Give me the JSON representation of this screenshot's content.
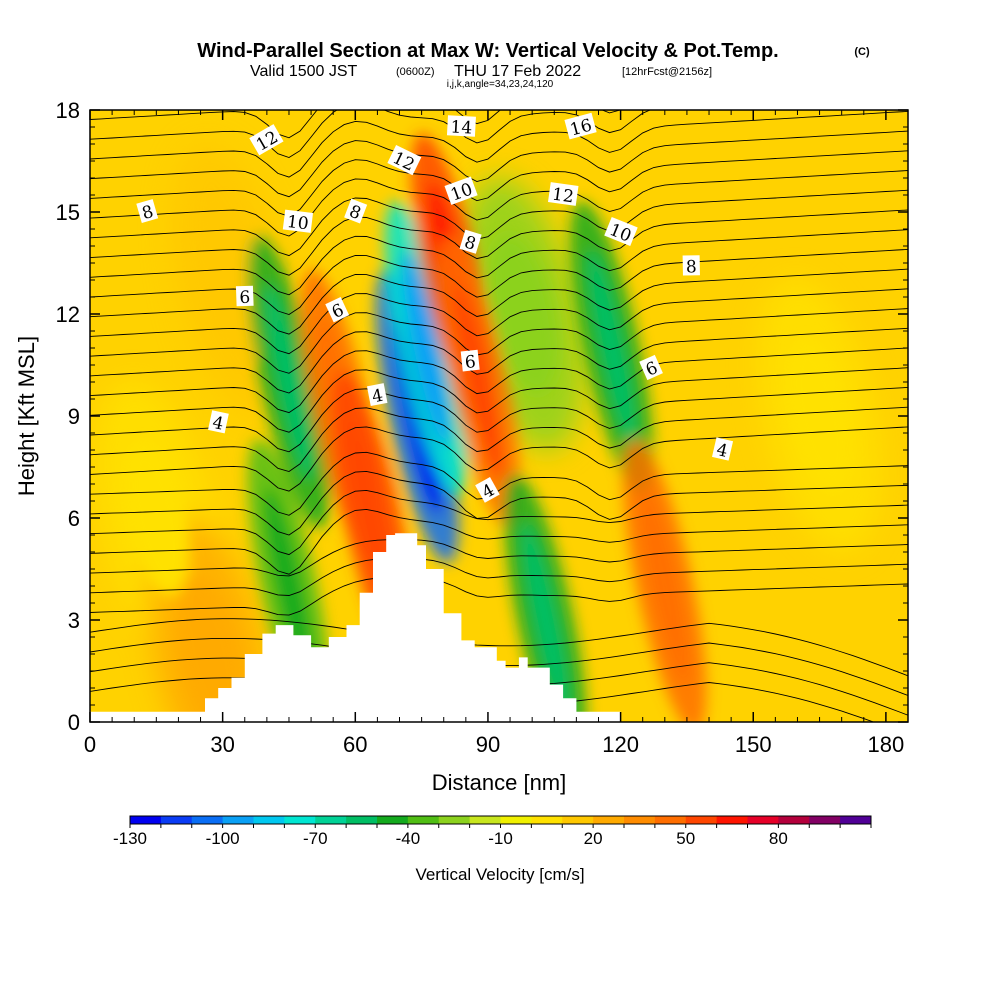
{
  "chart_data": {
    "type": "heatmap",
    "title": "Wind-Parallel Section at Max W: Vertical Velocity & Pot.Temp.",
    "title_mark": "(C)",
    "subtitle_valid": "Valid 1500 JST",
    "subtitle_utc": "(0600Z)",
    "subtitle_date": "THU 17 Feb 2022",
    "subtitle_fcst": "[12hrFcst@2156z]",
    "subtitle_indices": "i,j,k,angle=34,23,24,120",
    "xlabel": "Distance [nm]",
    "ylabel": "Height [Kft MSL]",
    "xlim": [
      0,
      185
    ],
    "ylim": [
      0,
      18
    ],
    "x_ticks": [
      0,
      30,
      60,
      90,
      120,
      150,
      180
    ],
    "y_ticks": [
      0,
      3,
      6,
      9,
      12,
      15,
      18
    ],
    "colorbar": {
      "label": "Vertical Velocity [cm/s]",
      "tick_labels": [
        "-130",
        "-100",
        "-70",
        "-40",
        "-10",
        "20",
        "50",
        "80"
      ],
      "tick_values": [
        -130,
        -100,
        -70,
        -40,
        -10,
        20,
        50,
        80
      ],
      "min": -130,
      "max": 100,
      "step": 10,
      "colors": [
        "#0000f0",
        "#0a3cf5",
        "#0a6ef5",
        "#0aa0f5",
        "#00c8f0",
        "#00e6d2",
        "#00d296",
        "#00be64",
        "#14aa1e",
        "#50be14",
        "#8cd21e",
        "#c8e61e",
        "#f0f000",
        "#ffe100",
        "#ffc800",
        "#ffaa00",
        "#ff8c00",
        "#ff6e00",
        "#ff4600",
        "#ff1400",
        "#e60028",
        "#b4003c",
        "#820064",
        "#500096"
      ]
    },
    "series": [
      {
        "name": "Vertical Velocity",
        "kind": "filled-contour",
        "features": [
          {
            "x": 15,
            "z": 6,
            "w": 5
          },
          {
            "x": 27,
            "z": 2,
            "w": 20
          },
          {
            "x": 32,
            "z": 13,
            "w": 10
          },
          {
            "x": 45,
            "z": 10,
            "w": -45
          },
          {
            "x": 45,
            "z": 4,
            "w": -40
          },
          {
            "x": 57,
            "z": 9,
            "w": 40
          },
          {
            "x": 64,
            "z": 6,
            "w": 50
          },
          {
            "x": 74,
            "z": 9,
            "w": -110
          },
          {
            "x": 76,
            "z": 11,
            "w": -80
          },
          {
            "x": 82,
            "z": 13,
            "w": 55
          },
          {
            "x": 88,
            "z": 10,
            "w": 45
          },
          {
            "x": 98,
            "z": 12,
            "w": -25
          },
          {
            "x": 103,
            "z": 3,
            "w": -45
          },
          {
            "x": 118,
            "z": 11,
            "w": -45
          },
          {
            "x": 130,
            "z": 4,
            "w": 40
          },
          {
            "x": 165,
            "z": 9,
            "w": 0
          }
        ]
      },
      {
        "name": "Pot.Temp.",
        "kind": "line-contour",
        "contour_labels": [
          "4",
          "6",
          "8",
          "10",
          "12",
          "14",
          "16"
        ]
      }
    ],
    "contour_labels": [
      {
        "text": "12",
        "x": 40,
        "z": 17.1
      },
      {
        "text": "10",
        "x": 47,
        "z": 14.7
      },
      {
        "text": "8",
        "x": 13,
        "z": 15.0
      },
      {
        "text": "8",
        "x": 60,
        "z": 15.0
      },
      {
        "text": "6",
        "x": 35,
        "z": 12.5
      },
      {
        "text": "6",
        "x": 56,
        "z": 12.1
      },
      {
        "text": "4",
        "x": 29,
        "z": 8.8
      },
      {
        "text": "4",
        "x": 65,
        "z": 9.6
      },
      {
        "text": "12",
        "x": 71,
        "z": 16.5
      },
      {
        "text": "14",
        "x": 84,
        "z": 17.5
      },
      {
        "text": "10",
        "x": 84,
        "z": 15.6
      },
      {
        "text": "8",
        "x": 86,
        "z": 14.1
      },
      {
        "text": "6",
        "x": 86,
        "z": 10.6
      },
      {
        "text": "4",
        "x": 90,
        "z": 6.8
      },
      {
        "text": "12",
        "x": 107,
        "z": 15.5
      },
      {
        "text": "16",
        "x": 111,
        "z": 17.5
      },
      {
        "text": "10",
        "x": 120,
        "z": 14.4
      },
      {
        "text": "8",
        "x": 136,
        "z": 13.4
      },
      {
        "text": "6",
        "x": 127,
        "z": 10.4
      },
      {
        "text": "4",
        "x": 143,
        "z": 8.0
      }
    ],
    "terrain": {
      "x": [
        0,
        26,
        26,
        29,
        29,
        32,
        32,
        35,
        35,
        39,
        39,
        42,
        42,
        46,
        46,
        50,
        50,
        54,
        54,
        58,
        58,
        61,
        61,
        64,
        64,
        67,
        67,
        69,
        69,
        74,
        74,
        76,
        76,
        80,
        80,
        84,
        84,
        87,
        87,
        92,
        92,
        94,
        94,
        97,
        97,
        99,
        99,
        104,
        104,
        107,
        107,
        110,
        110,
        120,
        120,
        185
      ],
      "z": [
        0.3,
        0.3,
        0.7,
        0.7,
        1.0,
        1.0,
        1.3,
        1.3,
        2.0,
        2.0,
        2.6,
        2.6,
        2.85,
        2.85,
        2.55,
        2.55,
        2.2,
        2.2,
        2.5,
        2.5,
        2.85,
        2.85,
        3.8,
        3.8,
        5.0,
        5.0,
        5.5,
        5.5,
        5.55,
        5.55,
        5.2,
        5.2,
        4.5,
        4.5,
        3.2,
        3.2,
        2.4,
        2.4,
        2.2,
        2.2,
        1.8,
        1.8,
        1.6,
        1.6,
        1.9,
        1.9,
        1.6,
        1.6,
        1.1,
        1.1,
        0.7,
        0.7,
        0.3,
        0.3,
        0.0,
        0.0
      ]
    }
  }
}
